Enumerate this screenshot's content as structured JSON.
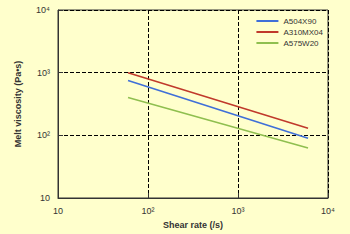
{
  "chart_data": {
    "type": "line",
    "x_label": "Shear rate (/s)",
    "y_label": "Melt viscosity (Pa•s)",
    "log": true,
    "grid": true,
    "legend": "top-right",
    "xlim": [
      10,
      10000
    ],
    "ylim": [
      10,
      10000
    ],
    "xticks": [
      10,
      {
        "value": 100,
        "label": "10²"
      },
      {
        "value": 1000,
        "label": "10³"
      },
      {
        "value": 10000,
        "label": "10⁴"
      }
    ],
    "yticks": [
      10,
      {
        "value": 100,
        "label": "10²"
      },
      {
        "value": 1000,
        "label": "10³"
      },
      {
        "value": 10000,
        "label": "10⁴"
      }
    ],
    "series": [
      {
        "name": "A504X90",
        "color": "#3f6fd8",
        "x": [
          60,
          6000
        ],
        "values": [
          750,
          90
        ]
      },
      {
        "name": "A310MX04",
        "color": "#c0392b",
        "x": [
          60,
          6000
        ],
        "values": [
          1000,
          130
        ]
      },
      {
        "name": "A575W20",
        "color": "#8fbf4f",
        "x": [
          60,
          6000
        ],
        "values": [
          400,
          63
        ]
      }
    ]
  }
}
